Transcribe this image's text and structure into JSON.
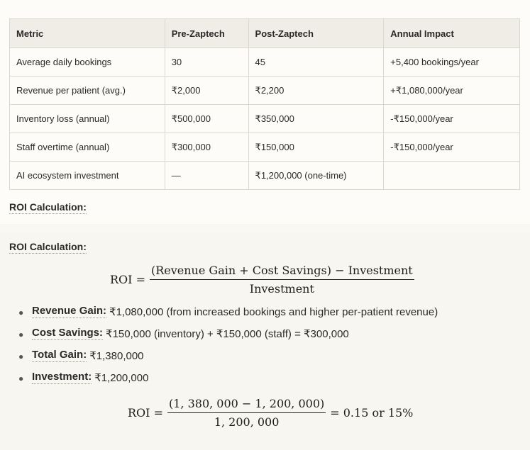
{
  "table": {
    "headers": [
      "Metric",
      "Pre-Zaptech",
      "Post-Zaptech",
      "Annual Impact"
    ],
    "rows": [
      [
        "Average daily bookings",
        "30",
        "45",
        "+5,400 bookings/year"
      ],
      [
        "Revenue per patient (avg.)",
        "₹2,000",
        "₹2,200",
        "+₹1,080,000/year"
      ],
      [
        "Inventory loss (annual)",
        "₹500,000",
        "₹350,000",
        "-₹150,000/year"
      ],
      [
        "Staff overtime (annual)",
        "₹300,000",
        "₹150,000",
        "-₹150,000/year"
      ],
      [
        "AI ecosystem investment",
        "—",
        "₹1,200,000 (one-time)",
        ""
      ]
    ]
  },
  "section_label_top": "ROI Calculation:",
  "section_label_bottom": "ROI Calculation:",
  "formula1": {
    "lhs": "ROI =",
    "numerator": "(Revenue Gain + Cost Savings) − Investment",
    "denominator": "Investment"
  },
  "items": [
    {
      "term": "Revenue Gain:",
      "desc": "₹1,080,000 (from increased bookings and higher per-patient revenue)"
    },
    {
      "term": "Cost Savings:",
      "desc": "₹150,000 (inventory) + ₹150,000 (staff) = ₹300,000"
    },
    {
      "term": "Total Gain:",
      "desc": "₹1,380,000"
    },
    {
      "term": "Investment:",
      "desc": "₹1,200,000"
    }
  ],
  "formula2": {
    "lhs": "ROI =",
    "numerator": "(1, 380, 000 − 1, 200, 000)",
    "denominator": "1, 200, 000",
    "rhs": "= 0.15 or 15%"
  }
}
